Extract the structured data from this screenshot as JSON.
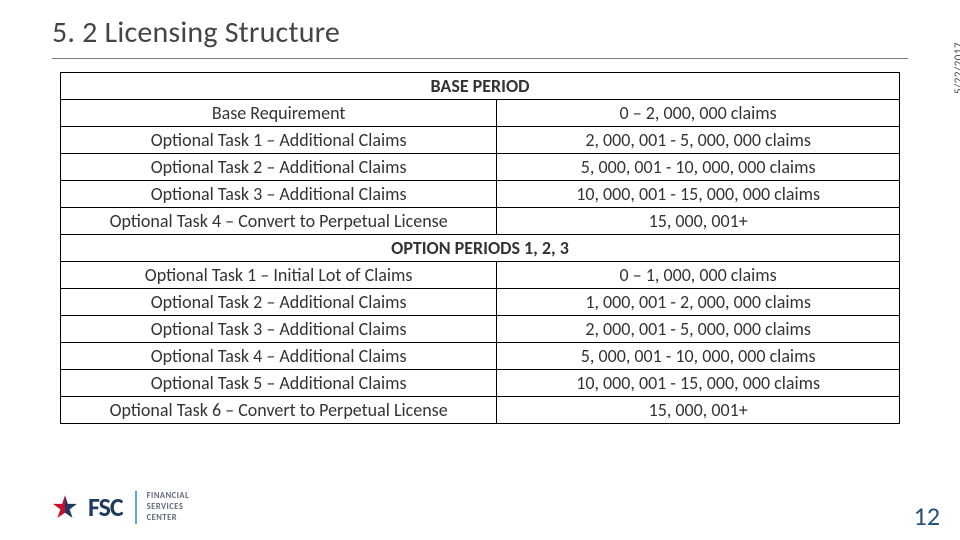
{
  "title": "5. 2 Licensing Structure",
  "date": "5/22/2017",
  "page_number": "12",
  "logo": {
    "fsc_text": "FSC",
    "sub_line1": "FINANCIAL",
    "sub_line2": "SERVICES",
    "sub_line3": "CENTER",
    "star_fill_left": "#c8102e",
    "star_fill_right": "#1f3a5f"
  },
  "table": {
    "section1_header": "BASE PERIOD",
    "section1_rows": [
      {
        "left": "Base Requirement",
        "right": "0 – 2, 000, 000 claims"
      },
      {
        "left": "Optional Task 1 – Additional Claims",
        "right": "2, 000, 001 - 5, 000, 000 claims"
      },
      {
        "left": "Optional Task 2 – Additional Claims",
        "right": "5, 000, 001 - 10, 000, 000 claims"
      },
      {
        "left": "Optional Task 3 – Additional Claims",
        "right": "10, 000, 001 - 15, 000, 000 claims"
      },
      {
        "left": "Optional Task 4 – Convert to Perpetual License",
        "right": "15, 000, 001+"
      }
    ],
    "section2_header": "OPTION PERIODS 1, 2, 3",
    "section2_rows": [
      {
        "left": "Optional Task 1 – Initial Lot of Claims",
        "right": "0 – 1, 000, 000 claims"
      },
      {
        "left": "Optional Task 2 – Additional Claims",
        "right": "1, 000, 001 - 2, 000, 000 claims"
      },
      {
        "left": "Optional Task 3 – Additional Claims",
        "right": "2, 000, 001 - 5, 000, 000 claims"
      },
      {
        "left": "Optional Task 4 – Additional Claims",
        "right": "5, 000, 001 - 10, 000, 000 claims"
      },
      {
        "left": "Optional Task 5 – Additional Claims",
        "right": "10, 000, 001 - 15, 000, 000 claims"
      },
      {
        "left": "Optional Task 6 – Convert to Perpetual License",
        "right": "15, 000, 001+"
      }
    ]
  },
  "colors": {
    "title_rule": "#7f7f7f",
    "text": "#333333",
    "page_number": "#1f4e79",
    "border": "#000000"
  }
}
